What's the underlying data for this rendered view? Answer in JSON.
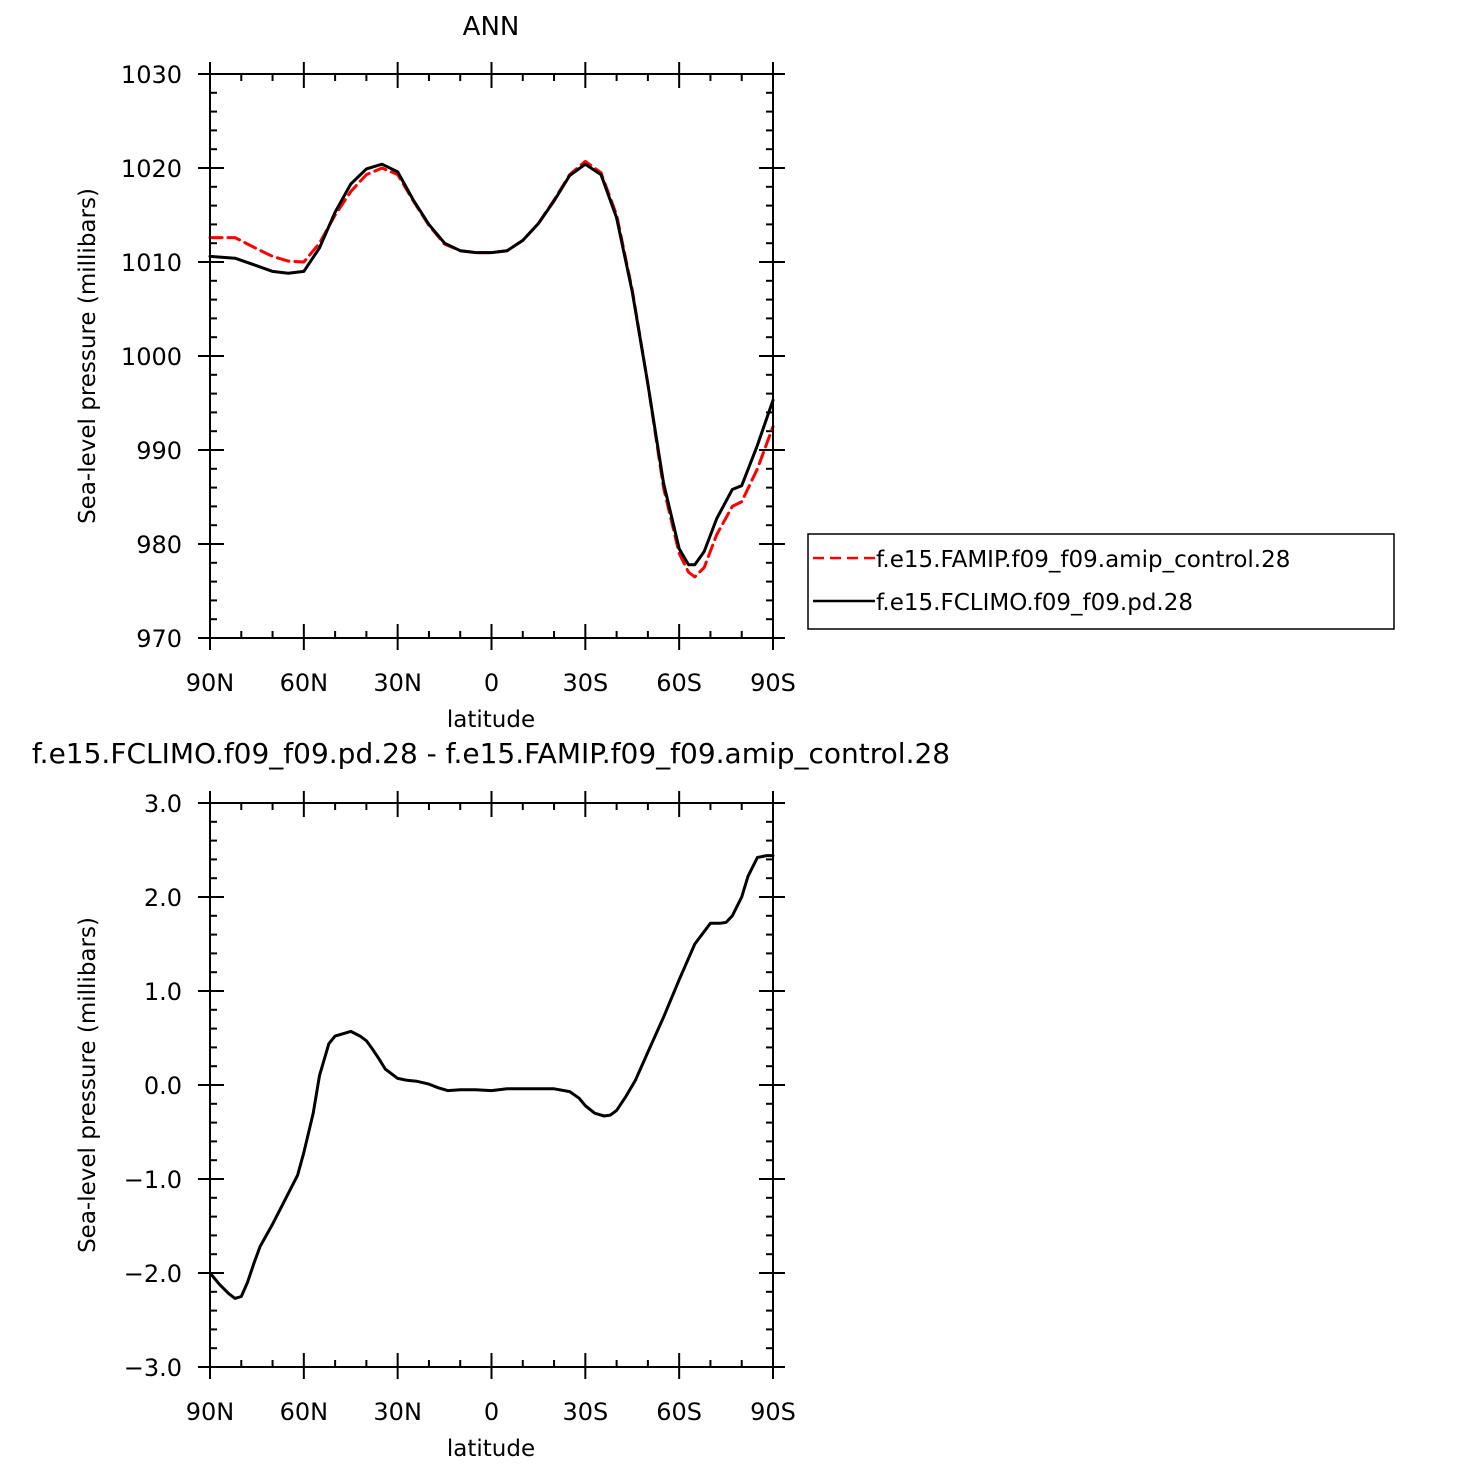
{
  "chart_data": [
    {
      "type": "line",
      "title": "ANN",
      "xlabel": "latitude",
      "ylabel": "Sea-level pressure (millibars)",
      "xlim": [
        90,
        -90
      ],
      "ylim": [
        970,
        1030
      ],
      "xticks": [
        {
          "value": 90,
          "label": "90N"
        },
        {
          "value": 60,
          "label": "60N"
        },
        {
          "value": 30,
          "label": "30N"
        },
        {
          "value": 0,
          "label": "0"
        },
        {
          "value": -30,
          "label": "30S"
        },
        {
          "value": -60,
          "label": "60S"
        },
        {
          "value": -90,
          "label": "90S"
        }
      ],
      "yticks": [
        {
          "value": 1030,
          "label": "1030"
        },
        {
          "value": 1020,
          "label": "1020"
        },
        {
          "value": 1010,
          "label": "1010"
        },
        {
          "value": 1000,
          "label": "1000"
        },
        {
          "value": 990,
          "label": "990"
        },
        {
          "value": 980,
          "label": "980"
        },
        {
          "value": 970,
          "label": "970"
        }
      ],
      "legend": {
        "position": "right"
      },
      "series": [
        {
          "name": "f.e15.FAMIP.f09_f09.amip_control.28",
          "color": "#ff0000",
          "dash": "dashed",
          "x": [
            90,
            82,
            75,
            70,
            65,
            60,
            55,
            50,
            45,
            40,
            35,
            30,
            25,
            20,
            15,
            10,
            5,
            0,
            -5,
            -10,
            -15,
            -20,
            -25,
            -30,
            -35,
            -40,
            -45,
            -50,
            -55,
            -60,
            -63,
            -65,
            -68,
            -72,
            -77,
            -80,
            -85,
            -90
          ],
          "y": [
            1012.6,
            1012.6,
            1011.4,
            1010.6,
            1010.1,
            1010.0,
            1012.0,
            1015.0,
            1017.5,
            1019.3,
            1020.0,
            1019.3,
            1016.5,
            1013.9,
            1011.9,
            1011.2,
            1011.0,
            1011.0,
            1011.2,
            1012.3,
            1014.1,
            1016.6,
            1019.3,
            1020.7,
            1019.5,
            1015.0,
            1007.0,
            997.0,
            986.0,
            979.0,
            977.0,
            976.5,
            977.5,
            981.0,
            984.0,
            984.5,
            988.0,
            992.5
          ]
        },
        {
          "name": "f.e15.FCLIMO.f09_f09.pd.28",
          "color": "#000000",
          "dash": "solid",
          "x": [
            90,
            82,
            75,
            70,
            65,
            60,
            55,
            50,
            45,
            40,
            35,
            30,
            25,
            20,
            15,
            10,
            5,
            0,
            -5,
            -10,
            -15,
            -20,
            -25,
            -30,
            -35,
            -40,
            -45,
            -50,
            -55,
            -60,
            -63,
            -65,
            -68,
            -72,
            -77,
            -80,
            -85,
            -90
          ],
          "y": [
            1010.6,
            1010.4,
            1009.6,
            1009.0,
            1008.8,
            1009.0,
            1011.5,
            1015.3,
            1018.3,
            1019.9,
            1020.4,
            1019.6,
            1016.6,
            1014.0,
            1012.0,
            1011.2,
            1011.0,
            1011.0,
            1011.2,
            1012.3,
            1014.1,
            1016.5,
            1019.2,
            1020.4,
            1019.3,
            1014.7,
            1006.8,
            997.0,
            986.5,
            979.5,
            977.8,
            977.8,
            979.2,
            982.7,
            985.8,
            986.2,
            990.5,
            995.3
          ]
        }
      ]
    },
    {
      "type": "line",
      "title": "f.e15.FCLIMO.f09_f09.pd.28 - f.e15.FAMIP.f09_f09.amip_control.28",
      "xlabel": "latitude",
      "ylabel": "Sea-level pressure (millibars)",
      "xlim": [
        90,
        -90
      ],
      "ylim": [
        -3.0,
        3.0
      ],
      "xticks": [
        {
          "value": 90,
          "label": "90N"
        },
        {
          "value": 60,
          "label": "60N"
        },
        {
          "value": 30,
          "label": "30N"
        },
        {
          "value": 0,
          "label": "0"
        },
        {
          "value": -30,
          "label": "30S"
        },
        {
          "value": -60,
          "label": "60S"
        },
        {
          "value": -90,
          "label": "90S"
        }
      ],
      "yticks": [
        {
          "value": 3.0,
          "label": "3.0"
        },
        {
          "value": 2.0,
          "label": "2.0"
        },
        {
          "value": 1.0,
          "label": "1.0"
        },
        {
          "value": 0.0,
          "label": "0.0"
        },
        {
          "value": -1.0,
          "label": "−1.0"
        },
        {
          "value": -2.0,
          "label": "−2.0"
        },
        {
          "value": -3.0,
          "label": "−3.0"
        }
      ],
      "series": [
        {
          "color": "#000000",
          "dash": "solid",
          "x": [
            90,
            87,
            84,
            82,
            80,
            78,
            76,
            74,
            72,
            70,
            66,
            62,
            60,
            57,
            55,
            52,
            50,
            48,
            45,
            42,
            40,
            38,
            36,
            34,
            30,
            27,
            24,
            20,
            17,
            14,
            10,
            5,
            0,
            -5,
            -10,
            -15,
            -20,
            -25,
            -28,
            -30,
            -33,
            -36,
            -38,
            -40,
            -43,
            -46,
            -50,
            -55,
            -60,
            -65,
            -70,
            -73,
            -75,
            -77,
            -80,
            -82,
            -85,
            -88,
            -90
          ],
          "y": [
            -2.0,
            -2.12,
            -2.22,
            -2.27,
            -2.25,
            -2.1,
            -1.9,
            -1.72,
            -1.6,
            -1.48,
            -1.22,
            -0.96,
            -0.72,
            -0.3,
            0.1,
            0.44,
            0.52,
            0.54,
            0.57,
            0.52,
            0.47,
            0.38,
            0.28,
            0.17,
            0.07,
            0.05,
            0.04,
            0.01,
            -0.03,
            -0.06,
            -0.05,
            -0.05,
            -0.06,
            -0.04,
            -0.04,
            -0.04,
            -0.04,
            -0.07,
            -0.14,
            -0.22,
            -0.3,
            -0.33,
            -0.32,
            -0.27,
            -0.12,
            0.05,
            0.35,
            0.72,
            1.12,
            1.5,
            1.72,
            1.72,
            1.73,
            1.8,
            2.0,
            2.22,
            2.42,
            2.44,
            2.44
          ]
        }
      ]
    }
  ]
}
